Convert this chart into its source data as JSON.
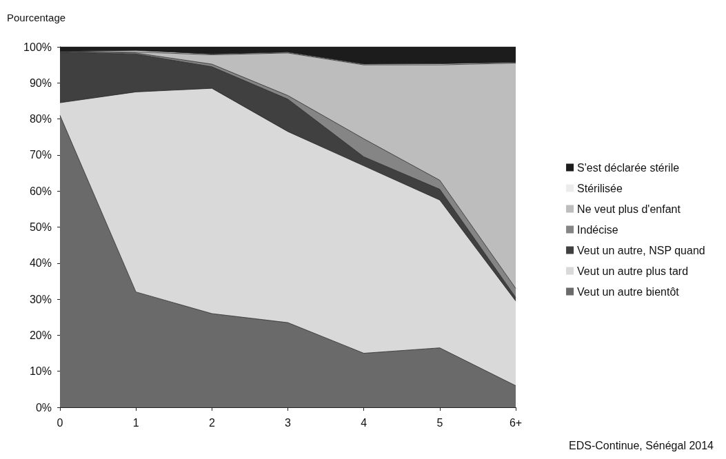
{
  "chart_data": {
    "type": "area",
    "stacked": true,
    "ylabel": "Pourcentage",
    "categories": [
      "0",
      "1",
      "2",
      "3",
      "4",
      "5",
      "6+"
    ],
    "series": [
      {
        "name": "Veut un autre bientôt",
        "color": "#6a6a6a",
        "values": [
          81,
          32,
          26,
          23.5,
          15,
          16.5,
          6
        ]
      },
      {
        "name": "Veut un autre plus tard",
        "color": "#d9d9d9",
        "values": [
          3.5,
          55.5,
          62.5,
          53,
          52,
          41,
          23.5
        ]
      },
      {
        "name": "Veut un autre, NSP quand",
        "color": "#404040",
        "values": [
          14,
          10.5,
          6,
          9,
          2.5,
          3,
          1
        ]
      },
      {
        "name": "Indécise",
        "color": "#858585",
        "values": [
          0.2,
          0.3,
          0.7,
          1,
          5,
          2.5,
          2.5
        ]
      },
      {
        "name": "Ne veut plus d'enfant",
        "color": "#bdbdbd",
        "values": [
          0.1,
          0.3,
          2.6,
          11.8,
          20.5,
          32,
          62.5
        ]
      },
      {
        "name": "Stérilisée",
        "color": "#ececec",
        "values": [
          0,
          0.4,
          0.2,
          0.2,
          0.2,
          0.3,
          0.2
        ]
      },
      {
        "name": "S'est déclarée stérile",
        "color": "#1c1c1c",
        "values": [
          1.2,
          1,
          2,
          1.5,
          4.8,
          4.7,
          4.3
        ]
      }
    ],
    "ylim": [
      0,
      100
    ],
    "yticks": [
      {
        "value": 0,
        "label": "0%"
      },
      {
        "value": 10,
        "label": "10%"
      },
      {
        "value": 20,
        "label": "20%"
      },
      {
        "value": 30,
        "label": "30%"
      },
      {
        "value": 40,
        "label": "40%"
      },
      {
        "value": 50,
        "label": "50%"
      },
      {
        "value": 60,
        "label": "60%"
      },
      {
        "value": 70,
        "label": "70%"
      },
      {
        "value": 80,
        "label": "80%"
      },
      {
        "value": 90,
        "label": "90%"
      },
      {
        "value": 100,
        "label": "100%"
      }
    ],
    "grid": false,
    "legend": "right",
    "annotations": [
      "EDS-Continue, Sénégal 2014"
    ]
  }
}
